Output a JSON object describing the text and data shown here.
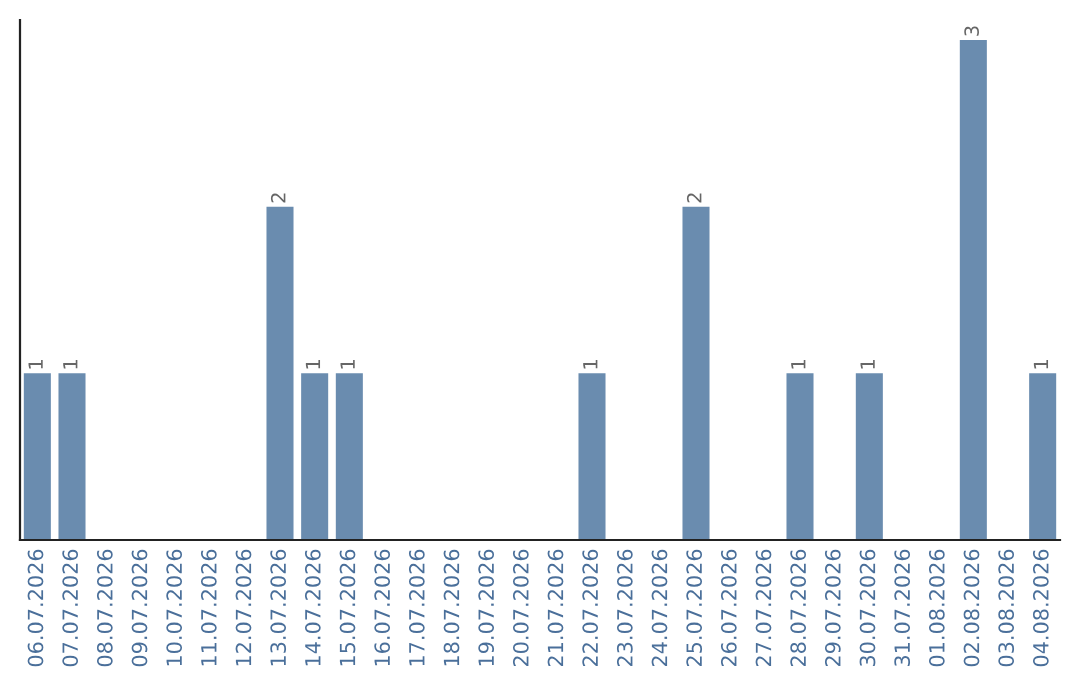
{
  "chart_data": {
    "type": "bar",
    "categories": [
      "06.07.2026",
      "07.07.2026",
      "08.07.2026",
      "09.07.2026",
      "10.07.2026",
      "11.07.2026",
      "12.07.2026",
      "13.07.2026",
      "14.07.2026",
      "15.07.2026",
      "16.07.2026",
      "17.07.2026",
      "18.07.2026",
      "19.07.2026",
      "20.07.2026",
      "21.07.2026",
      "22.07.2026",
      "23.07.2026",
      "24.07.2026",
      "25.07.2026",
      "26.07.2026",
      "27.07.2026",
      "28.07.2026",
      "29.07.2026",
      "30.07.2026",
      "31.07.2026",
      "01.08.2026",
      "02.08.2026",
      "03.08.2026",
      "04.08.2026"
    ],
    "values": [
      1,
      1,
      0,
      0,
      0,
      0,
      0,
      2,
      1,
      1,
      0,
      0,
      0,
      0,
      0,
      0,
      1,
      0,
      0,
      2,
      0,
      0,
      1,
      0,
      1,
      0,
      0,
      3,
      0,
      1
    ],
    "value_labels": [
      "1",
      "1",
      null,
      null,
      null,
      null,
      null,
      "2",
      "1",
      "1",
      null,
      null,
      null,
      null,
      null,
      null,
      "1",
      null,
      null,
      "2",
      null,
      null,
      "1",
      null,
      "1",
      null,
      null,
      "3",
      null,
      "1"
    ],
    "color": "#6a8caf",
    "grid": false,
    "legend": false
  }
}
